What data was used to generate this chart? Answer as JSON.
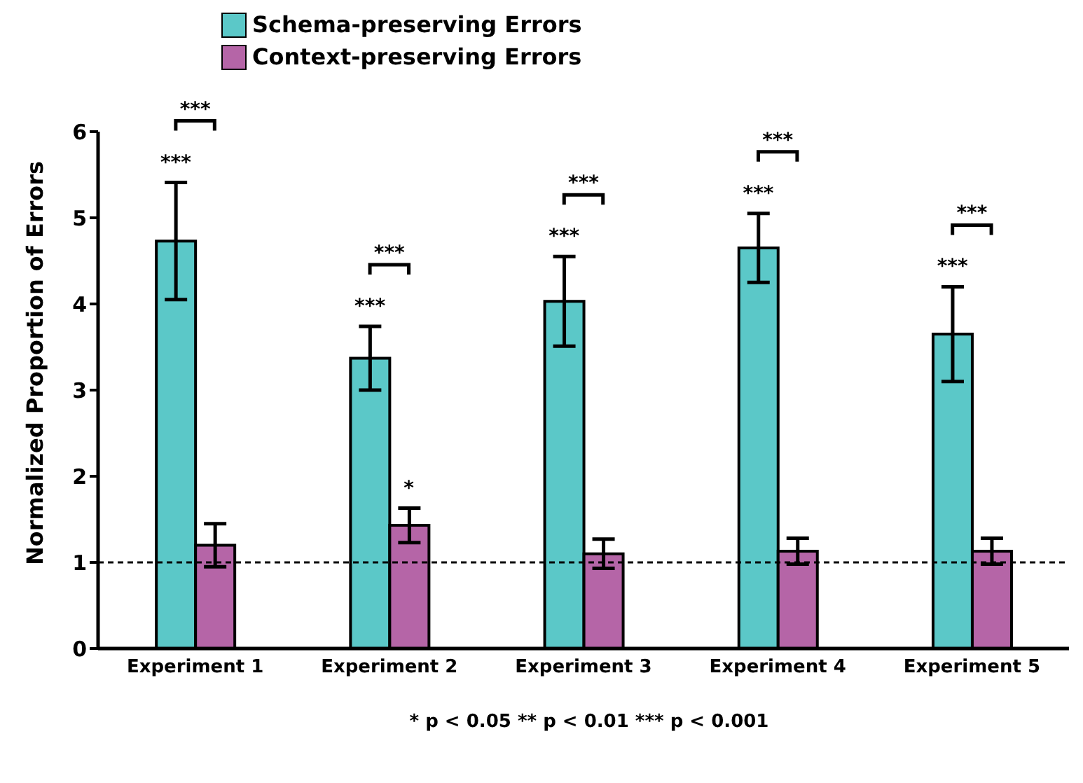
{
  "chart_data": {
    "type": "bar",
    "categories": [
      "Experiment 1",
      "Experiment 2",
      "Experiment 3",
      "Experiment 4",
      "Experiment 5"
    ],
    "ylabel": "Normalized Proportion of Errors",
    "series": [
      {
        "name": "Schema-preserving Errors",
        "color": "#5bc8c8",
        "values": [
          4.73,
          3.37,
          4.03,
          4.65,
          3.65
        ],
        "errors": [
          0.68,
          0.37,
          0.52,
          0.4,
          0.55
        ]
      },
      {
        "name": "Context-preserving Errors",
        "color": "#b565a7",
        "values": [
          1.2,
          1.43,
          1.1,
          1.13,
          1.13
        ],
        "errors": [
          0.25,
          0.2,
          0.17,
          0.15,
          0.15
        ]
      }
    ],
    "ylim": [
      0,
      6
    ],
    "yticks": [
      0,
      1,
      2,
      3,
      4,
      5,
      6
    ],
    "legend": "top left",
    "ref_lines": [
      {
        "axis": "y",
        "value": 1,
        "line_style": "dashed",
        "color": "#000000"
      }
    ],
    "annotations": [
      "***",
      "***",
      "***",
      "***",
      "***",
      {
        "text": "*",
        "x": "Experiment 2",
        "y": 1.43
      },
      "***",
      "***",
      "***",
      "***",
      "***",
      "* p < 0.05   ** p < 0.01   *** p < 0.001"
    ]
  }
}
